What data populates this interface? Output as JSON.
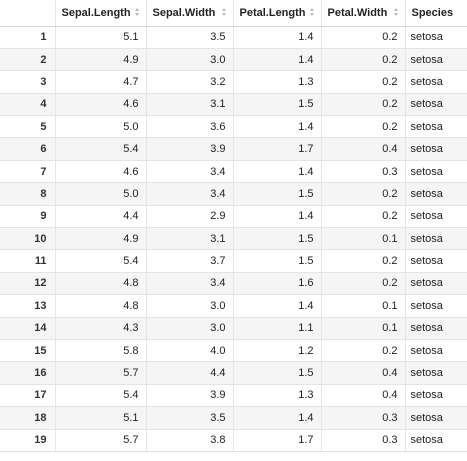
{
  "table": {
    "columns": [
      {
        "label": ""
      },
      {
        "label": "Sepal.Length"
      },
      {
        "label": "Sepal.Width"
      },
      {
        "label": "Petal.Length"
      },
      {
        "label": "Petal.Width"
      },
      {
        "label": "Species"
      }
    ],
    "rows": [
      [
        "1",
        "5.1",
        "3.5",
        "1.4",
        "0.2",
        "setosa"
      ],
      [
        "2",
        "4.9",
        "3.0",
        "1.4",
        "0.2",
        "setosa"
      ],
      [
        "3",
        "4.7",
        "3.2",
        "1.3",
        "0.2",
        "setosa"
      ],
      [
        "4",
        "4.6",
        "3.1",
        "1.5",
        "0.2",
        "setosa"
      ],
      [
        "5",
        "5.0",
        "3.6",
        "1.4",
        "0.2",
        "setosa"
      ],
      [
        "6",
        "5.4",
        "3.9",
        "1.7",
        "0.4",
        "setosa"
      ],
      [
        "7",
        "4.6",
        "3.4",
        "1.4",
        "0.3",
        "setosa"
      ],
      [
        "8",
        "5.0",
        "3.4",
        "1.5",
        "0.2",
        "setosa"
      ],
      [
        "9",
        "4.4",
        "2.9",
        "1.4",
        "0.2",
        "setosa"
      ],
      [
        "10",
        "4.9",
        "3.1",
        "1.5",
        "0.1",
        "setosa"
      ],
      [
        "11",
        "5.4",
        "3.7",
        "1.5",
        "0.2",
        "setosa"
      ],
      [
        "12",
        "4.8",
        "3.4",
        "1.6",
        "0.2",
        "setosa"
      ],
      [
        "13",
        "4.8",
        "3.0",
        "1.4",
        "0.1",
        "setosa"
      ],
      [
        "14",
        "4.3",
        "3.0",
        "1.1",
        "0.1",
        "setosa"
      ],
      [
        "15",
        "5.8",
        "4.0",
        "1.2",
        "0.2",
        "setosa"
      ],
      [
        "16",
        "5.7",
        "4.4",
        "1.5",
        "0.4",
        "setosa"
      ],
      [
        "17",
        "5.4",
        "3.9",
        "1.3",
        "0.4",
        "setosa"
      ],
      [
        "18",
        "5.1",
        "3.5",
        "1.4",
        "0.3",
        "setosa"
      ],
      [
        "19",
        "5.7",
        "3.8",
        "1.7",
        "0.3",
        "setosa"
      ]
    ]
  },
  "icons": {
    "sort": "sort-arrows-icon"
  },
  "colors": {
    "stripe": "#f5f5f5",
    "border": "#e4e4e4",
    "sort_icon": "#b8b8b8"
  }
}
